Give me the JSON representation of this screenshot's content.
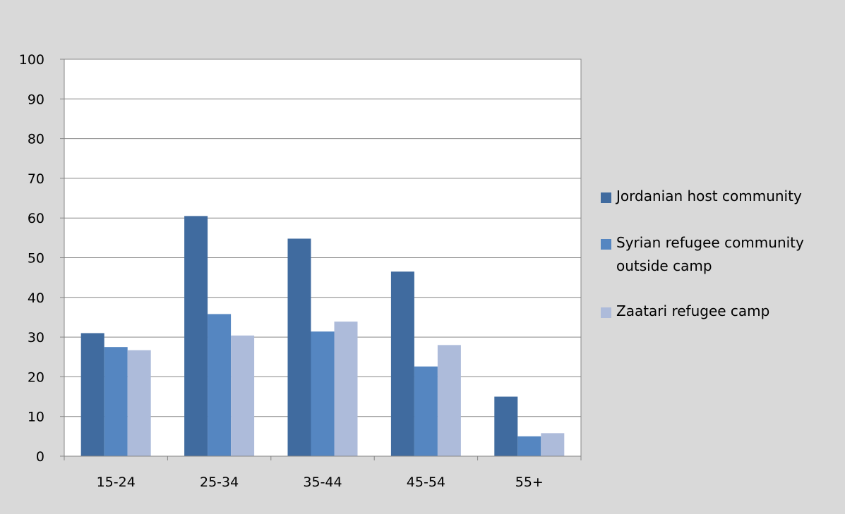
{
  "chart_data": {
    "type": "bar",
    "title": "",
    "xlabel": "",
    "ylabel": "",
    "categories": [
      "15-24",
      "25-34",
      "35-44",
      "45-54",
      "55+"
    ],
    "ylim": [
      0,
      100
    ],
    "yticks": [
      "0",
      "10",
      "20",
      "30",
      "40",
      "50",
      "60",
      "70",
      "80",
      "90",
      "100"
    ],
    "grid": "horizontal",
    "legend_position": "right",
    "series": [
      {
        "name": "Jordanian host community",
        "color": "#406b9f",
        "values": [
          31,
          60.5,
          54.8,
          46.5,
          15
        ]
      },
      {
        "name": "Syrian refugee community outside camp",
        "color": "#5586c1",
        "values": [
          27.5,
          35.8,
          31.4,
          22.6,
          5
        ]
      },
      {
        "name": "Zaatari refugee camp",
        "color": "#adbbda",
        "values": [
          26.7,
          30.4,
          33.9,
          28,
          5.8
        ]
      }
    ]
  }
}
